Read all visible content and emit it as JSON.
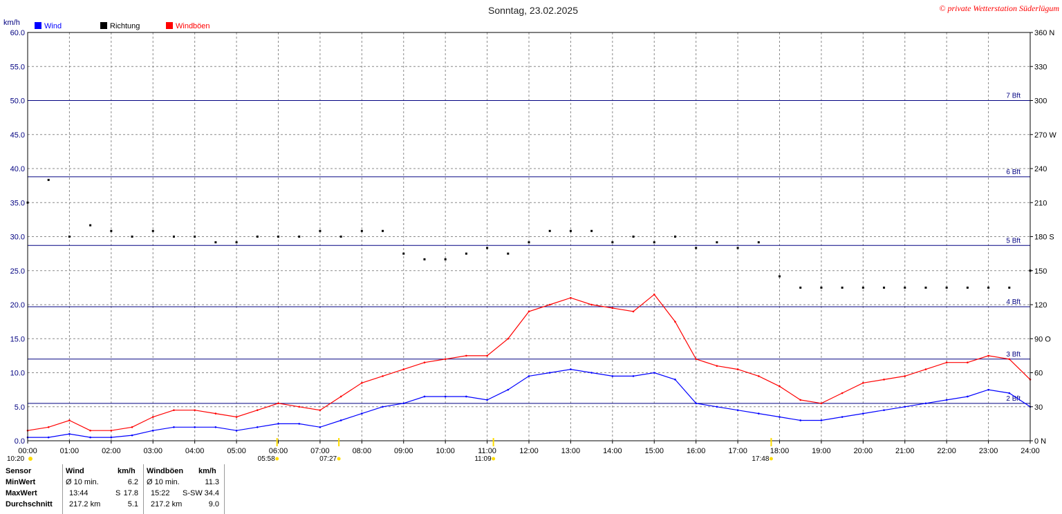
{
  "title": "Sonntag, 23.02.2025",
  "copyright": "© private Wetterstation Süderlügum",
  "left_unit": "km/h",
  "colors": {
    "wind": "#0000ff",
    "direction": "#000000",
    "gusts": "#ff0000",
    "bft_line": "#000080",
    "grid": "#888888"
  },
  "legend": [
    {
      "label": "Wind",
      "color": "#0000ff"
    },
    {
      "label": "Richtung",
      "color": "#000000"
    },
    {
      "label": "Windböen",
      "color": "#ff0000"
    }
  ],
  "y_ticks_left": [
    "0.0",
    "5.0",
    "10.0",
    "15.0",
    "20.0",
    "25.0",
    "30.0",
    "35.0",
    "40.0",
    "45.0",
    "50.0",
    "55.0",
    "60.0"
  ],
  "y_ticks_right": [
    "0 N",
    "30",
    "60",
    "90 O",
    "120",
    "150",
    "180 S",
    "210",
    "240",
    "270 W",
    "300",
    "330",
    "360 N"
  ],
  "x_ticks": [
    "00:00",
    "01:00",
    "02:00",
    "03:00",
    "04:00",
    "05:00",
    "06:00",
    "07:00",
    "08:00",
    "09:00",
    "10:00",
    "11:00",
    "12:00",
    "13:00",
    "14:00",
    "15:00",
    "16:00",
    "17:00",
    "18:00",
    "19:00",
    "20:00",
    "21:00",
    "22:00",
    "23:00",
    "24:00"
  ],
  "bft_lines": [
    {
      "value": 5.5,
      "label": "2 Bft"
    },
    {
      "value": 12.0,
      "label": "3 Bft"
    },
    {
      "value": 19.7,
      "label": "4 Bft"
    },
    {
      "value": 28.7,
      "label": "5 Bft"
    },
    {
      "value": 38.8,
      "label": "6 Bft"
    },
    {
      "value": 50.0,
      "label": "7 Bft"
    }
  ],
  "sun_events": [
    {
      "time": "10:20",
      "hour": 0.0
    },
    {
      "time": "05:58",
      "hour": 5.97
    },
    {
      "time": "07:27",
      "hour": 7.45
    },
    {
      "time": "11:09",
      "hour": 11.15
    },
    {
      "time": "17:48",
      "hour": 17.8
    }
  ],
  "stats": {
    "header": {
      "sensor": "Sensor",
      "wind": "Wind",
      "wind_unit": "km/h",
      "gust": "Windböen",
      "gust_unit": "km/h"
    },
    "rows": [
      {
        "label": "MinWert",
        "wind_time": "Ø 10 min.",
        "wind_dir": "",
        "wind_val": "6.2",
        "gust_time": "Ø 10 min.",
        "gust_dir": "",
        "gust_val": "11.3"
      },
      {
        "label": "MaxWert",
        "wind_time": "13:44",
        "wind_dir": "S",
        "wind_val": "17.8",
        "gust_time": "15:22",
        "gust_dir": "S-SW",
        "gust_val": "34.4"
      },
      {
        "label": "Durchschnitt",
        "wind_time": "217.2 km",
        "wind_dir": "",
        "wind_val": "5.1",
        "gust_time": "217.2 km",
        "gust_dir": "",
        "gust_val": "9.0"
      }
    ]
  },
  "chart_data": {
    "type": "line",
    "title": "Sonntag, 23.02.2025",
    "xlabel": "",
    "ylabel": "km/h",
    "xlim": [
      0,
      24
    ],
    "ylim": [
      0,
      60
    ],
    "y2lim": [
      0,
      360
    ],
    "grid": true,
    "legend_position": "top-left",
    "x": [
      0,
      0.5,
      1,
      1.5,
      2,
      2.5,
      3,
      3.5,
      4,
      4.5,
      5,
      5.5,
      6,
      6.5,
      7,
      7.5,
      8,
      8.5,
      9,
      9.5,
      10,
      10.5,
      11,
      11.5,
      12,
      12.5,
      13,
      13.5,
      14,
      14.5,
      15,
      15.5,
      16,
      16.5,
      17,
      17.5,
      18,
      18.5,
      19,
      19.5,
      20,
      20.5,
      21,
      21.5,
      22,
      22.5,
      23,
      23.5,
      24
    ],
    "series": [
      {
        "name": "Wind",
        "axis": "left",
        "values": [
          0.5,
          0.5,
          1.0,
          0.5,
          0.5,
          0.8,
          1.5,
          2.0,
          2.0,
          2.0,
          1.5,
          2.0,
          2.5,
          2.5,
          2.0,
          3.0,
          4.0,
          5.0,
          5.5,
          6.5,
          6.5,
          6.5,
          6.0,
          7.5,
          9.5,
          10.0,
          10.5,
          10.0,
          9.5,
          9.5,
          10.0,
          9.0,
          5.5,
          5.0,
          4.5,
          4.0,
          3.5,
          3.0,
          3.0,
          3.5,
          4.0,
          4.5,
          5.0,
          5.5,
          6.0,
          6.5,
          7.5,
          7.0,
          5.0
        ]
      },
      {
        "name": "Windböen",
        "axis": "left",
        "values": [
          1.5,
          2.0,
          3.0,
          1.5,
          1.5,
          2.0,
          3.5,
          4.5,
          4.5,
          4.0,
          3.5,
          4.5,
          5.5,
          5.0,
          4.5,
          6.5,
          8.5,
          9.5,
          10.5,
          11.5,
          12.0,
          12.5,
          12.5,
          15.0,
          19.0,
          20.0,
          21.0,
          20.0,
          19.5,
          19.0,
          21.5,
          17.5,
          12.0,
          11.0,
          10.5,
          9.5,
          8.0,
          6.0,
          5.5,
          7.0,
          8.5,
          9.0,
          9.5,
          10.5,
          11.5,
          11.5,
          12.5,
          12.0,
          9.0
        ]
      },
      {
        "name": "Richtung",
        "axis": "right",
        "values": [
          210,
          230,
          180,
          190,
          185,
          180,
          185,
          180,
          180,
          175,
          175,
          180,
          180,
          180,
          185,
          180,
          185,
          185,
          165,
          160,
          160,
          165,
          170,
          165,
          175,
          185,
          185,
          185,
          175,
          180,
          175,
          180,
          170,
          175,
          170,
          175,
          145,
          135,
          135,
          135,
          135,
          135,
          135,
          135,
          135,
          135,
          135,
          135,
          150
        ]
      }
    ]
  }
}
